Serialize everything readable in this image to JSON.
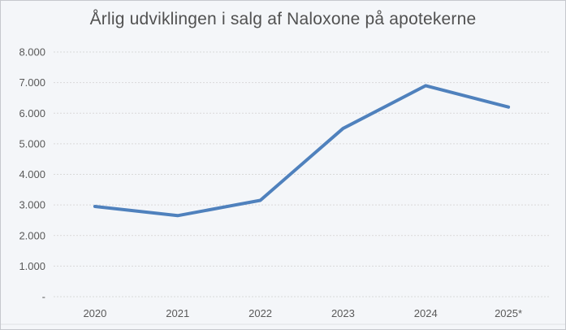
{
  "frame": {
    "background_color": "#f4f6f9",
    "border_color": "#c6c8cd"
  },
  "chart_data": {
    "type": "line",
    "title": "Årlig udviklingen i salg af Naloxone på apotekerne",
    "categories": [
      "2020",
      "2021",
      "2022",
      "2023",
      "2024",
      "2025*"
    ],
    "values": [
      2950,
      2650,
      3150,
      5500,
      6900,
      6200
    ],
    "xlabel": "",
    "ylabel": "",
    "ylim": [
      0,
      8000
    ],
    "grid": true,
    "legend": "none",
    "y_ticks": [
      {
        "value": 0,
        "label": "-"
      },
      {
        "value": 1000,
        "label": "1.000"
      },
      {
        "value": 2000,
        "label": "2.000"
      },
      {
        "value": 3000,
        "label": "3.000"
      },
      {
        "value": 4000,
        "label": "4.000"
      },
      {
        "value": 5000,
        "label": "5.000"
      },
      {
        "value": 6000,
        "label": "6.000"
      },
      {
        "value": 7000,
        "label": "7.000"
      },
      {
        "value": 8000,
        "label": "8.000"
      }
    ],
    "colors": {
      "line": "#4F81BD",
      "gridline": "#d9d9d9",
      "tick_text": "#595959",
      "title_text": "#515151"
    }
  }
}
